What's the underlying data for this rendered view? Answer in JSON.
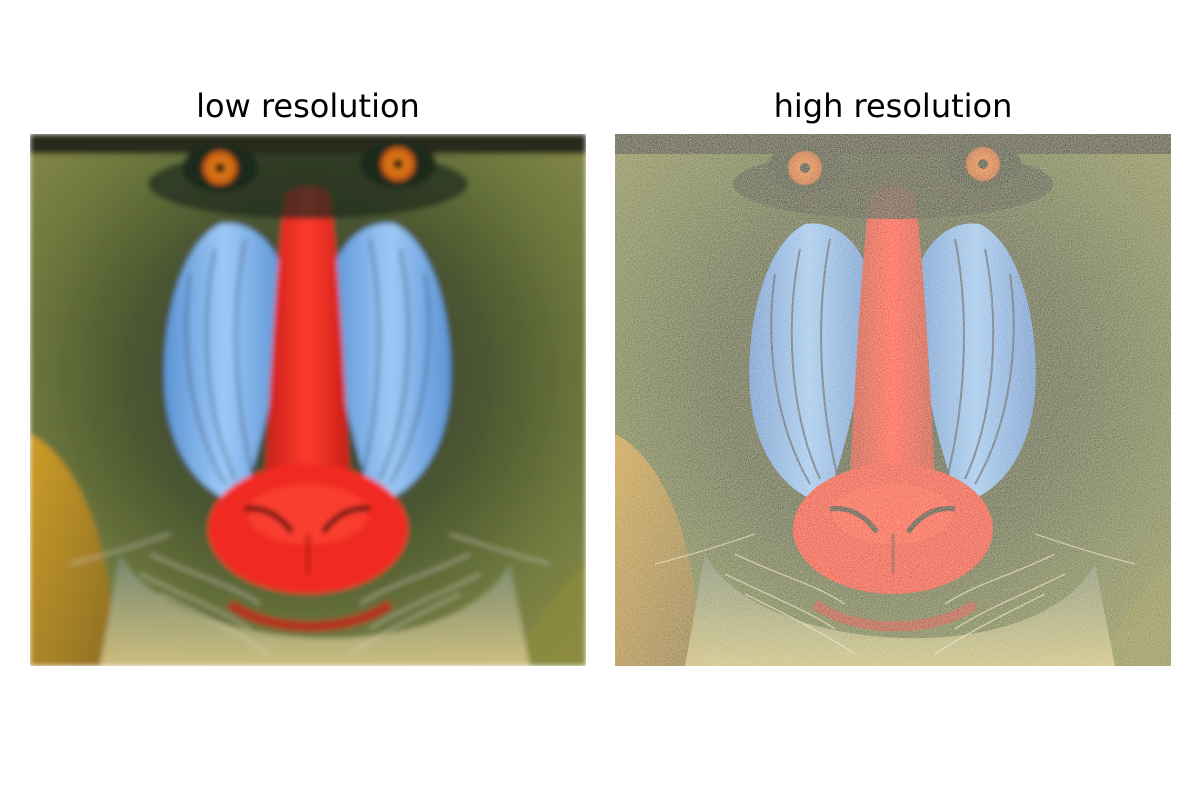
{
  "figure": {
    "panels": [
      {
        "title": "low resolution",
        "image": "mandrill-face",
        "quality": "blurred"
      },
      {
        "title": "high resolution",
        "image": "mandrill-face",
        "quality": "sharp"
      }
    ]
  },
  "colors": {
    "background": "#ffffff",
    "fur_dark": "#3b3f23",
    "fur_olive": "#6f7a3e",
    "fur_gold": "#d7a127",
    "cheek_blue": "#7fb7f0",
    "nose_red": "#f02a20",
    "eye_orange": "#e37d16",
    "whisker": "#e8e0d0"
  }
}
